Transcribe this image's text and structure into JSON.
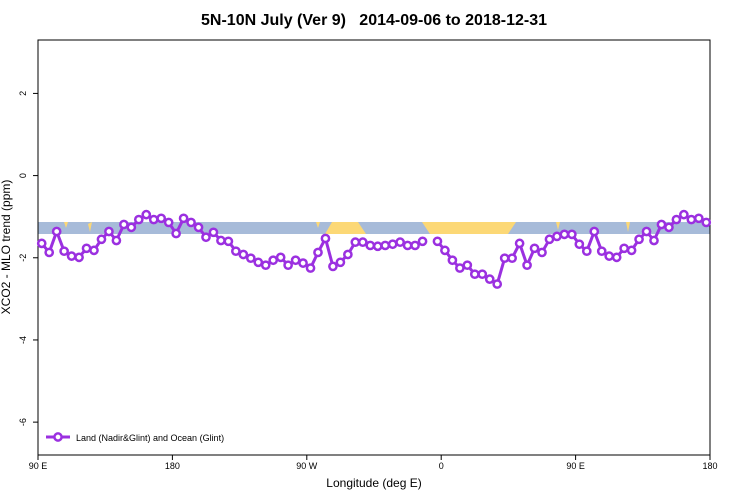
{
  "chart_data": {
    "type": "line",
    "title": "5N-10N July (Ver 9)   2014-09-06 to 2018-12-31",
    "x_label": "Longitude (deg E)",
    "y_label": "XCO2 - MLO trend (ppm)",
    "xlim": [
      90,
      540
    ],
    "ylim": [
      -6.8,
      3.3
    ],
    "xticks": [
      {
        "value": 90,
        "label": "90 E"
      },
      180,
      {
        "value": 270,
        "label": "90 W"
      },
      {
        "value": 360,
        "label": "0"
      },
      {
        "value": 450,
        "label": "90 E"
      },
      {
        "value": 540,
        "label": "180"
      }
    ],
    "yticks": [
      -6,
      -4,
      -2,
      0,
      2
    ],
    "legend": "bottom-left",
    "x": [
      92.5,
      97.5,
      102.5,
      107.5,
      112.5,
      117.5,
      122.5,
      127.5,
      132.5,
      137.5,
      142.5,
      147.5,
      152.5,
      157.5,
      162.5,
      167.5,
      172.5,
      177.5,
      182.5,
      187.5,
      192.5,
      197.5,
      202.5,
      207.5,
      212.5,
      217.5,
      222.5,
      227.5,
      232.5,
      237.5,
      242.5,
      247.5,
      252.5,
      257.5,
      262.5,
      267.5,
      272.5,
      277.5,
      282.5,
      287.5,
      292.5,
      297.5,
      302.5,
      307.5,
      312.5,
      317.5,
      322.5,
      327.5,
      332.5,
      337.5,
      342.5,
      347.5,
      352.5,
      357.5,
      362.5,
      367.5,
      372.5,
      377.5,
      382.5,
      387.5,
      392.5,
      397.5,
      402.5,
      407.5,
      412.5,
      417.5,
      422.5,
      427.5,
      432.5,
      437.5,
      442.5,
      447.5,
      452.5,
      457.5,
      462.5,
      467.5,
      472.5,
      477.5,
      482.5,
      487.5,
      492.5,
      497.5,
      502.5,
      507.5,
      512.5,
      517.5,
      522.5,
      527.5,
      532.5,
      537.5
    ],
    "series": [
      {
        "name": "Land (Nadir&Glint) and Ocean (Glint)",
        "color": "#9b30e0",
        "values": [
          -1.65,
          -1.87,
          -1.36,
          -1.84,
          -1.96,
          -1.99,
          -1.77,
          -1.82,
          -1.55,
          -1.36,
          -1.58,
          -1.19,
          -1.26,
          -1.07,
          -0.95,
          -1.07,
          -1.04,
          -1.14,
          -1.41,
          -1.04,
          -1.14,
          -1.26,
          -1.5,
          -1.38,
          -1.58,
          -1.6,
          -1.84,
          -1.92,
          -2.01,
          -2.11,
          -2.18,
          -2.06,
          -1.99,
          -2.18,
          -2.06,
          -2.13,
          -2.25,
          -1.87,
          -1.53,
          -2.21,
          -2.11,
          -1.92,
          -1.62,
          -1.62,
          -1.7,
          -1.72,
          -1.7,
          -1.67,
          -1.62,
          -1.7,
          -1.7,
          -1.6,
          null,
          -1.6,
          -1.82,
          -2.06,
          -2.25,
          -2.18,
          -2.4,
          -2.4,
          -2.52,
          -2.64,
          -2.01,
          -2.01,
          -1.65,
          -2.18,
          -1.77,
          -1.87,
          -1.55,
          -1.48,
          -1.43,
          -1.43,
          -1.67,
          -1.84,
          -1.36,
          -1.84,
          -1.96,
          -1.99,
          -1.77,
          -1.82,
          -1.55,
          -1.36,
          -1.58,
          -1.19,
          -1.26,
          -1.07,
          -0.95,
          -1.07,
          -1.04,
          -1.14
        ]
      }
    ]
  }
}
